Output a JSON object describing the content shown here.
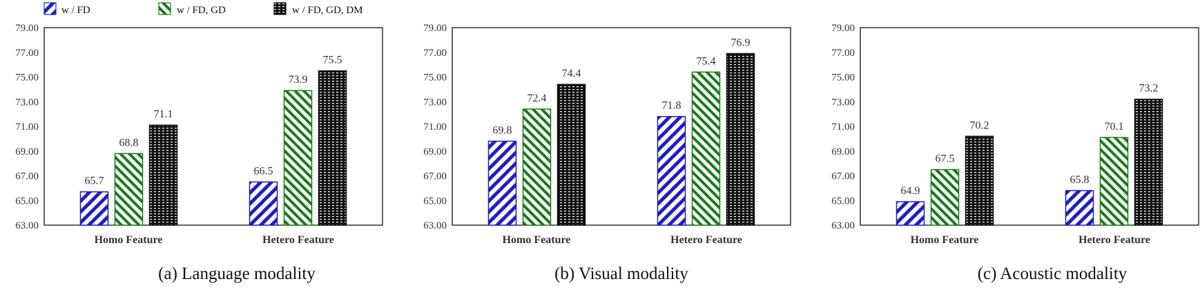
{
  "legend": [
    {
      "label": "w / FD",
      "pattern": "pat-fd",
      "stroke": "#1f1fbf"
    },
    {
      "label": "w / FD, GD",
      "pattern": "pat-gd",
      "stroke": "#1a7a1a"
    },
    {
      "label": "w / FD, GD, DM",
      "pattern": "pat-dm",
      "stroke": "#111111"
    }
  ],
  "colors": {
    "fd": "#1f1fbf",
    "gd": "#1a7a1a",
    "dm": "#111111"
  },
  "chart_data": [
    {
      "type": "bar",
      "title": "(a) Language modality",
      "categories": [
        "Homo Feature",
        "Hetero Feature"
      ],
      "series": [
        {
          "name": "w / FD",
          "values": [
            65.7,
            66.5
          ]
        },
        {
          "name": "w / FD, GD",
          "values": [
            68.8,
            73.9
          ]
        },
        {
          "name": "w / FD, GD, DM",
          "values": [
            71.1,
            75.5
          ]
        }
      ],
      "ylim": [
        63,
        79
      ],
      "yticks": [
        "63.00",
        "65.00",
        "67.00",
        "69.00",
        "71.00",
        "73.00",
        "75.00",
        "77.00",
        "79.00"
      ],
      "xlabel": "",
      "ylabel": ""
    },
    {
      "type": "bar",
      "title": "(b) Visual modality",
      "categories": [
        "Homo Feature",
        "Hetero Feature"
      ],
      "series": [
        {
          "name": "w / FD",
          "values": [
            69.8,
            71.8
          ]
        },
        {
          "name": "w / FD, GD",
          "values": [
            72.4,
            75.4
          ]
        },
        {
          "name": "w / FD, GD, DM",
          "values": [
            74.4,
            76.9
          ]
        }
      ],
      "ylim": [
        63,
        79
      ],
      "yticks": [
        "63.00",
        "65.00",
        "67.00",
        "69.00",
        "71.00",
        "73.00",
        "75.00",
        "77.00",
        "79.00"
      ],
      "xlabel": "",
      "ylabel": ""
    },
    {
      "type": "bar",
      "title": "(c) Acoustic modality",
      "categories": [
        "Homo Feature",
        "Hetero Feature"
      ],
      "series": [
        {
          "name": "w / FD",
          "values": [
            64.9,
            65.8
          ]
        },
        {
          "name": "w / FD, GD",
          "values": [
            67.5,
            70.1
          ]
        },
        {
          "name": "w / FD, GD, DM",
          "values": [
            70.2,
            73.2
          ]
        }
      ],
      "ylim": [
        63,
        79
      ],
      "yticks": [
        "63.00",
        "65.00",
        "67.00",
        "69.00",
        "71.00",
        "73.00",
        "75.00",
        "77.00",
        "79.00"
      ],
      "xlabel": "",
      "ylabel": ""
    }
  ]
}
